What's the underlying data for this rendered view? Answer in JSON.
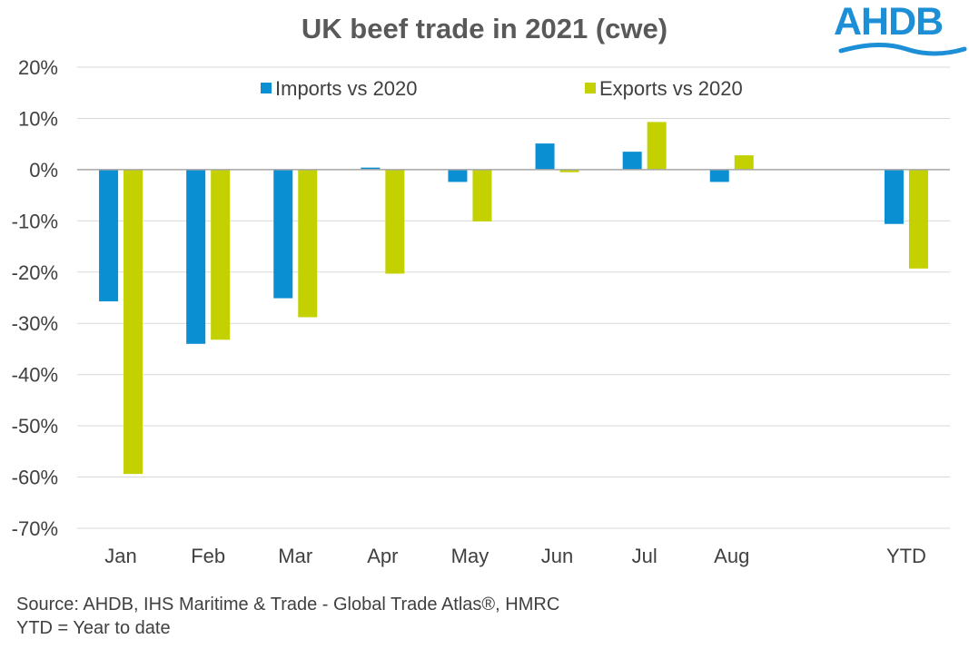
{
  "brand": {
    "logo_text": "AHDB",
    "logo_color": "#1d8fd6"
  },
  "chart_data": {
    "type": "bar",
    "title": "UK beef trade in 2021 (cwe)",
    "categories": [
      "Jan",
      "Feb",
      "Mar",
      "Apr",
      "May",
      "Jun",
      "Jul",
      "Aug",
      "",
      "YTD"
    ],
    "series": [
      {
        "name": "Imports vs 2020",
        "color": "#0b8fd3",
        "values": [
          -25.7,
          -34.0,
          -25.1,
          0.4,
          -2.4,
          5.1,
          3.5,
          -2.4,
          null,
          -10.6
        ]
      },
      {
        "name": "Exports vs 2020",
        "color": "#c4d100",
        "values": [
          -59.4,
          -33.2,
          -28.8,
          -20.3,
          -10.1,
          -0.5,
          9.3,
          2.8,
          null,
          -19.3
        ]
      }
    ],
    "ylim": [
      -70,
      20
    ],
    "yticks": [
      20,
      10,
      0,
      -10,
      -20,
      -30,
      -40,
      -50,
      -60,
      -70
    ],
    "ytick_labels": [
      "20%",
      "10%",
      "0%",
      "-10%",
      "-20%",
      "-30%",
      "-40%",
      "-50%",
      "-60%",
      "-70%"
    ],
    "xlabel": "",
    "ylabel": "",
    "grid": true,
    "legend_position": "top"
  },
  "footnotes": {
    "source": "Source: AHDB, IHS Maritime & Trade - Global Trade Atlas®, HMRC",
    "ytd_note": "YTD = Year to date"
  }
}
